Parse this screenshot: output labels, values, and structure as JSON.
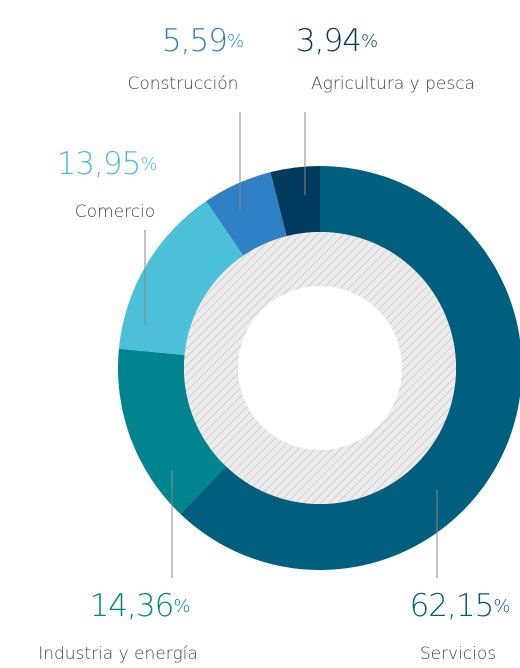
{
  "chart_data": {
    "type": "donut",
    "categories": [
      "Servicios",
      "Industria y energía",
      "Comercio",
      "Construcción",
      "Agricultura y pesca"
    ],
    "values": [
      62.15,
      14.36,
      13.95,
      5.59,
      3.94
    ],
    "value_labels": [
      "62,15",
      "14,36",
      "13,95",
      "5,59",
      "3,94"
    ],
    "unit": "%",
    "colors": [
      "#005f7f",
      "#00858f",
      "#4cbfd9",
      "#2f80c4",
      "#003a5c"
    ]
  }
}
